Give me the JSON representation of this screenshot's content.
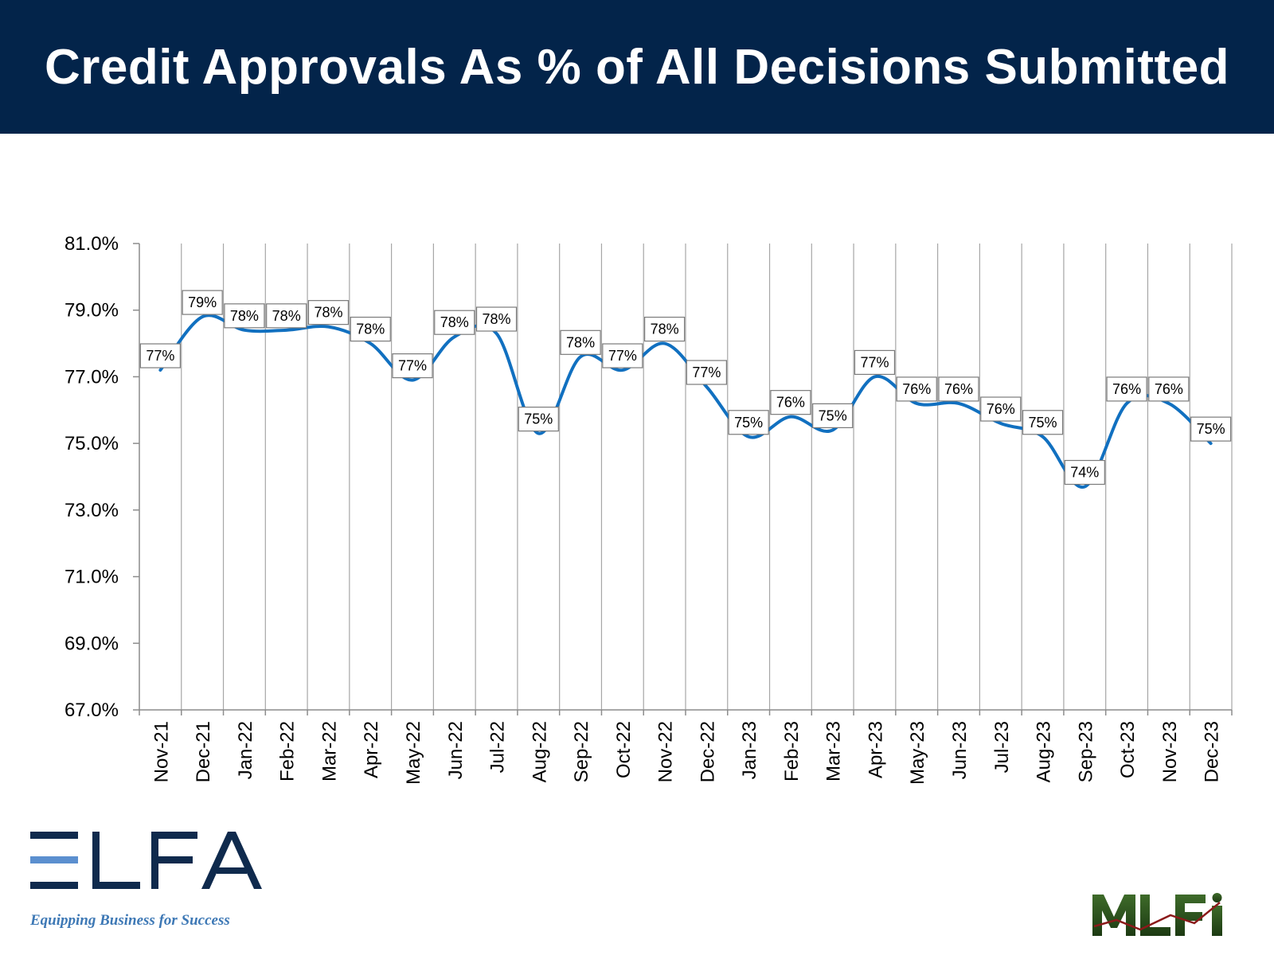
{
  "header": {
    "title": "Credit Approvals As % of All Decisions Submitted"
  },
  "colors": {
    "header_bg": "#03244a",
    "line": "#1170c0",
    "grid": "#a6a6a6",
    "text": "#000000"
  },
  "chart_data": {
    "type": "line",
    "title": "",
    "xlabel": "",
    "ylabel": "",
    "categories": [
      "Nov-21",
      "Dec-21",
      "Jan-22",
      "Feb-22",
      "Mar-22",
      "Apr-22",
      "May-22",
      "Jun-22",
      "Jul-22",
      "Aug-22",
      "Sep-22",
      "Oct-22",
      "Nov-22",
      "Dec-22",
      "Jan-23",
      "Feb-23",
      "Mar-23",
      "Apr-23",
      "May-23",
      "Jun-23",
      "Jul-23",
      "Aug-23",
      "Sep-23",
      "Oct-23",
      "Nov-23",
      "Dec-23"
    ],
    "series": [
      {
        "name": "",
        "values": [
          77.2,
          78.8,
          78.4,
          78.4,
          78.5,
          78.0,
          76.9,
          78.2,
          78.3,
          75.3,
          77.6,
          77.2,
          78.0,
          76.7,
          75.2,
          75.8,
          75.4,
          77.0,
          76.2,
          76.2,
          75.6,
          75.2,
          73.7,
          76.2,
          76.2,
          75.0
        ],
        "data_labels": [
          "77%",
          "79%",
          "78%",
          "78%",
          "78%",
          "78%",
          "77%",
          "78%",
          "78%",
          "75%",
          "78%",
          "77%",
          "78%",
          "77%",
          "75%",
          "76%",
          "75%",
          "77%",
          "76%",
          "76%",
          "76%",
          "75%",
          "74%",
          "76%",
          "76%",
          "75%"
        ]
      }
    ],
    "ylim": [
      67.0,
      81.0
    ],
    "yticks": [
      "81.0%",
      "79.0%",
      "77.0%",
      "75.0%",
      "73.0%",
      "71.0%",
      "69.0%",
      "67.0%"
    ],
    "ytick_values": [
      81,
      79,
      77,
      75,
      73,
      71,
      69,
      67
    ],
    "grid": "vertical",
    "legend": "none"
  },
  "logos": {
    "elfa_text": "ELFA",
    "elfa_tagline": "Equipping Business for Success",
    "mlfi_text": "MLFI"
  }
}
